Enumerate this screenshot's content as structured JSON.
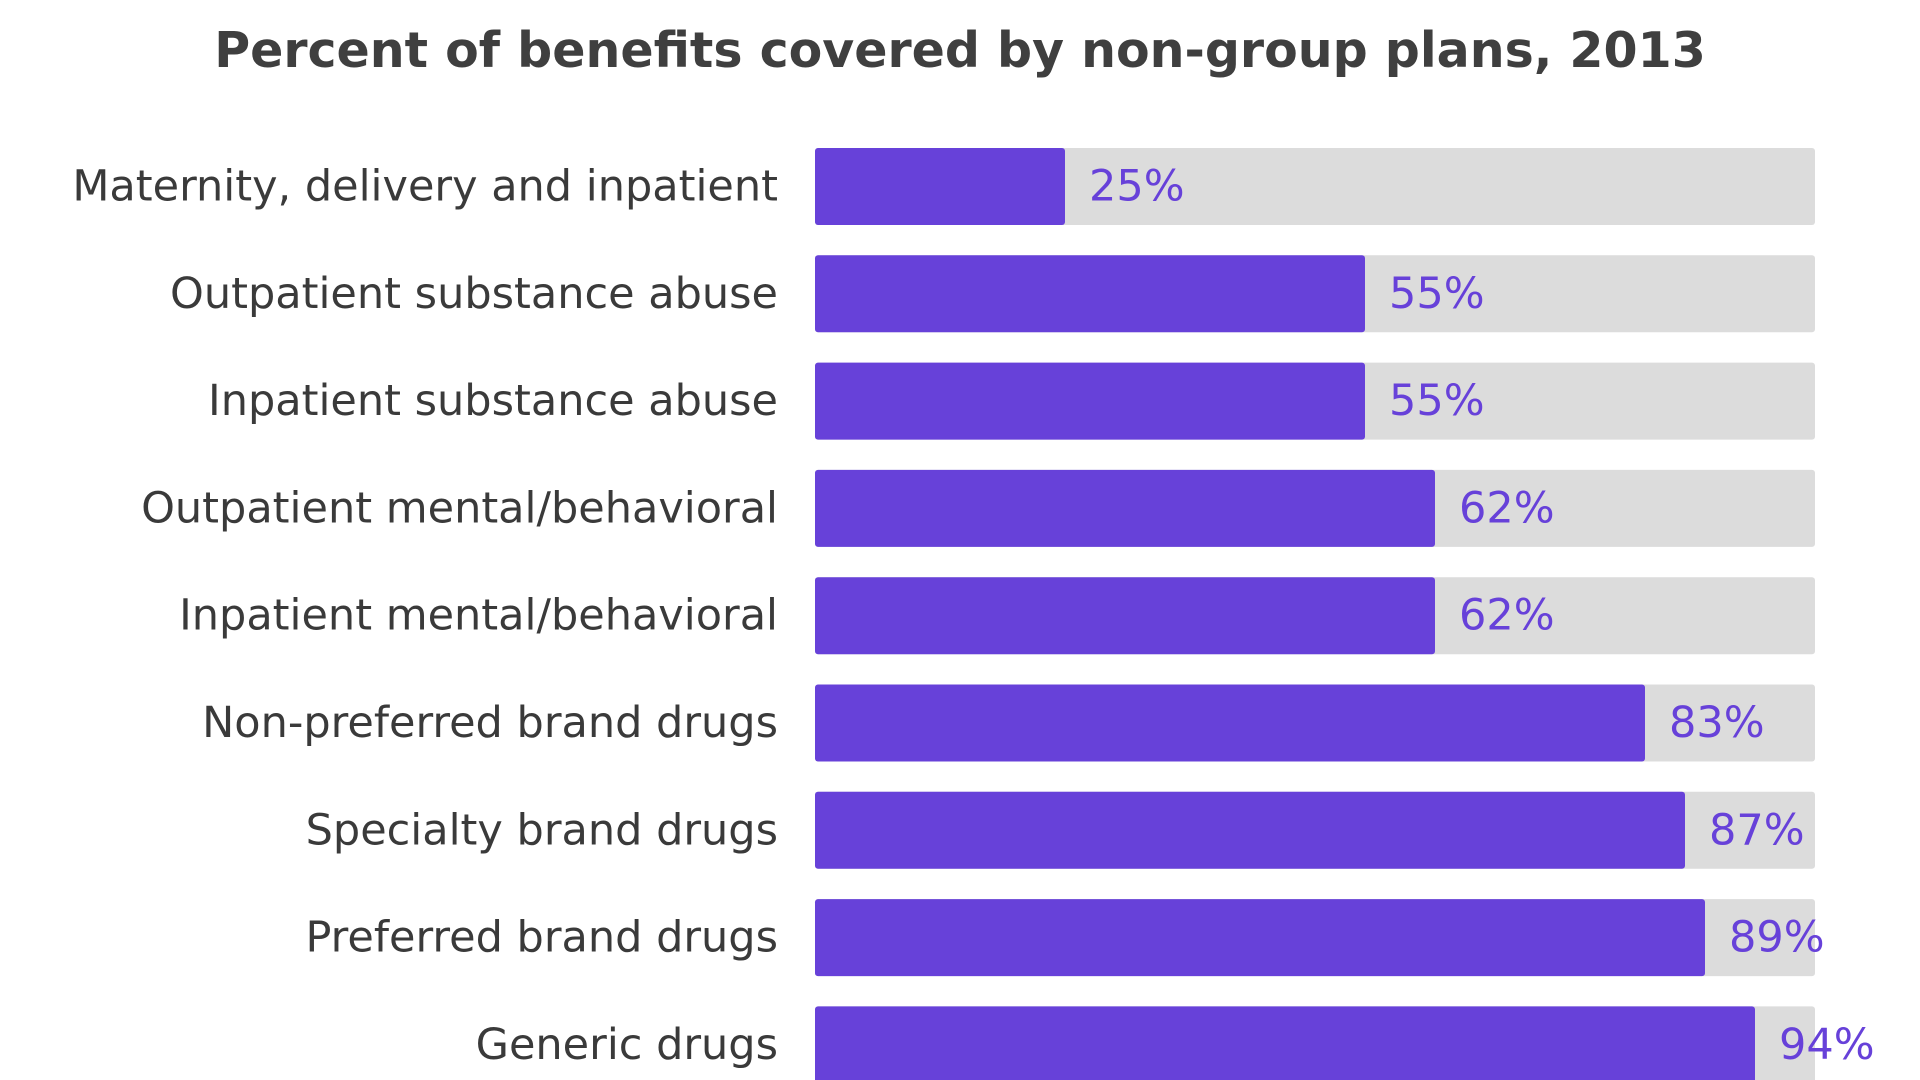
{
  "chart_data": {
    "type": "bar",
    "orientation": "horizontal",
    "title": "Percent of benefits covered by non-group plans, 2013",
    "xlabel": "",
    "ylabel": "",
    "xlim": [
      0,
      100
    ],
    "grid": false,
    "legend": "none",
    "categories": [
      "Maternity, delivery and inpatient",
      "Outpatient substance abuse",
      "Inpatient substance abuse",
      "Outpatient mental/behavioral",
      "Inpatient mental/behavioral",
      "Non-preferred brand drugs",
      "Specialty brand drugs",
      "Preferred brand drugs",
      "Generic drugs"
    ],
    "values": [
      25,
      55,
      55,
      62,
      62,
      83,
      87,
      89,
      94
    ],
    "value_labels": [
      "25%",
      "55%",
      "55%",
      "62%",
      "62%",
      "83%",
      "87%",
      "89%",
      "94%"
    ],
    "colors": {
      "bar": "#6741d9",
      "track": "#dcdcdc",
      "value_text": "#6741d9",
      "category_text": "#3a3a3a",
      "title_text": "#3f3f3f"
    }
  }
}
